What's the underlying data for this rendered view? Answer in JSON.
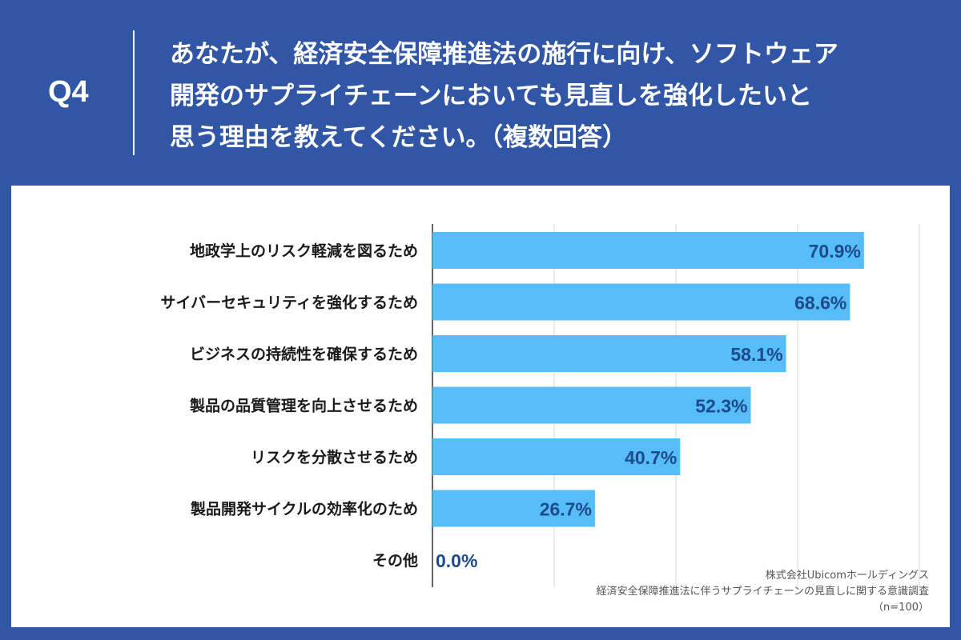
{
  "header": {
    "q_label": "Q4",
    "question_lines": [
      "あなたが、経済安全保障推進法の施行に向け、ソフトウェア",
      "開発のサプライチェーンにおいても見直しを強化したいと",
      "思う理由を教えてください。（複数回答）"
    ]
  },
  "source": {
    "company": "株式会社Ubicomホールディングス",
    "survey": "経済安全保障推進法に伴うサプライチェーンの見直しに関する意識調査",
    "sample": "（n=100）"
  },
  "colors": {
    "background": "#3156a6",
    "bar": "#56bdf8",
    "value_text": "#1d4a8a",
    "grid": "#d9d9d9"
  },
  "chart_data": {
    "type": "bar",
    "orientation": "horizontal",
    "categories": [
      "地政学上のリスク軽減を図るため",
      "サイバーセキュリティを強化するため",
      "ビジネスの持続性を確保するため",
      "製品の品質管理を向上させるため",
      "リスクを分散させるため",
      "製品開発サイクルの効率化のため",
      "その他"
    ],
    "values": [
      70.9,
      68.6,
      58.1,
      52.3,
      40.7,
      26.7,
      0.0
    ],
    "value_labels": [
      "70.9%",
      "68.6%",
      "58.1%",
      "52.3%",
      "40.7%",
      "26.7%",
      "0.0%"
    ],
    "unit": "%",
    "xlim": [
      0,
      80
    ],
    "grid": true,
    "legend": "none"
  }
}
